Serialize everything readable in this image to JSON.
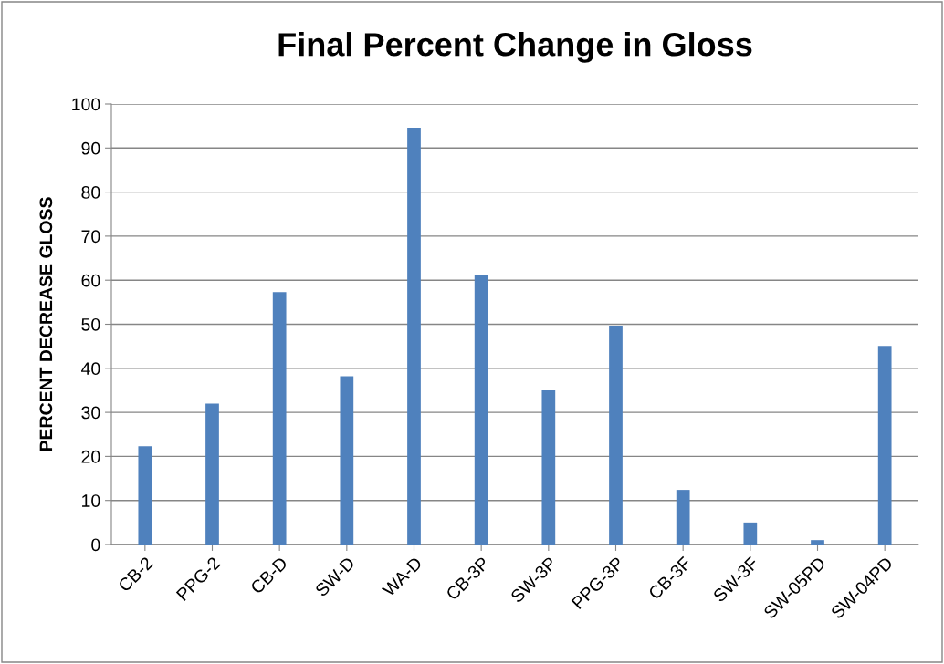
{
  "chart_data": {
    "type": "bar",
    "title": "Final Percent Change in Gloss",
    "ylabel": "PERCENT DECREASE GLOSS",
    "categories": [
      "CB-2",
      "PPG-2",
      "CB-D",
      "SW-D",
      "WA-D",
      "CB-3P",
      "SW-3P",
      "PPG-3P",
      "CB-3F",
      "SW-3F",
      "SW-05PD",
      "SW-04PD"
    ],
    "values": [
      22.3,
      32,
      57.3,
      38.2,
      94.6,
      61.3,
      35,
      49.7,
      12.4,
      5,
      1,
      45.1
    ],
    "color": "#4f81bd",
    "ylim": [
      0,
      100
    ],
    "yticks": [
      0,
      10,
      20,
      30,
      40,
      50,
      60,
      70,
      80,
      90,
      100
    ],
    "grid": "y"
  }
}
